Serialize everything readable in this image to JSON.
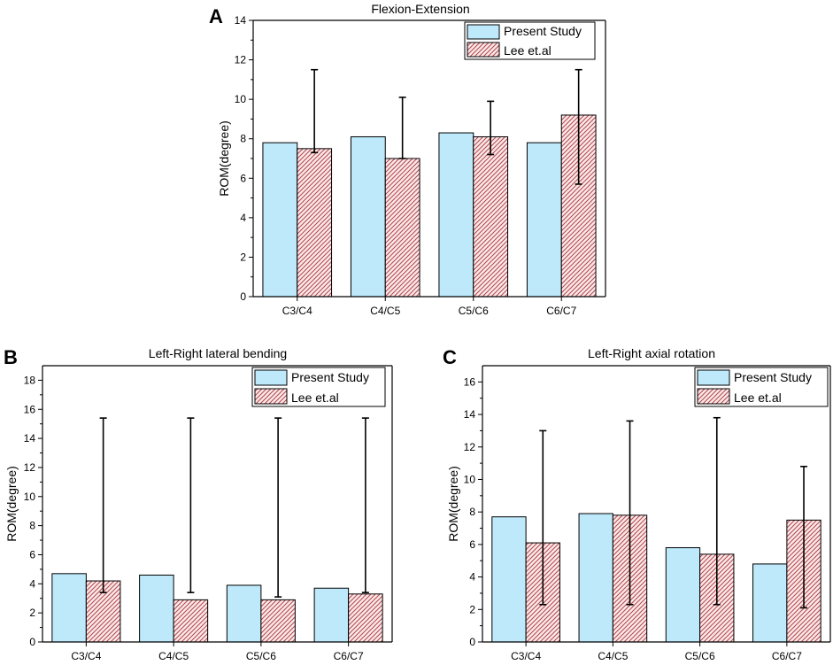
{
  "figure": {
    "colors": {
      "present": "#bde9fb",
      "lee_fill": "#fbeaea",
      "lee_hatch": "#b5494f",
      "axis": "#000000"
    },
    "icons": {
      "hatch": "diagonal-hatch-pattern"
    }
  },
  "chart_data": [
    {
      "panel": "A",
      "type": "bar",
      "title": "Flexion-Extension",
      "xlabel": "",
      "ylabel": "ROM(degree)",
      "categories": [
        "C3/C4",
        "C4/C5",
        "C5/C6",
        "C6/C7"
      ],
      "ylim": [
        0,
        14
      ],
      "yticks": [
        0,
        2,
        4,
        6,
        8,
        10,
        12,
        14
      ],
      "legend_position": "top-right",
      "series": [
        {
          "name": "Present Study",
          "values": [
            7.8,
            8.1,
            8.3,
            7.8
          ]
        },
        {
          "name": "Lee et.al",
          "values": [
            7.5,
            7.0,
            8.1,
            9.2
          ],
          "error_bars": [
            [
              7.3,
              11.5
            ],
            [
              7.0,
              10.1
            ],
            [
              7.2,
              9.9
            ],
            [
              5.7,
              11.5
            ]
          ]
        }
      ]
    },
    {
      "panel": "B",
      "type": "bar",
      "title": "Left-Right lateral bending",
      "xlabel": "",
      "ylabel": "ROM(degree)",
      "categories": [
        "C3/C4",
        "C4/C5",
        "C5/C6",
        "C6/C7"
      ],
      "ylim": [
        0,
        19
      ],
      "yticks": [
        0,
        2,
        4,
        6,
        8,
        10,
        12,
        14,
        16,
        18
      ],
      "legend_position": "top-right",
      "series": [
        {
          "name": "Present Study",
          "values": [
            4.7,
            4.6,
            3.9,
            3.7
          ]
        },
        {
          "name": "Lee et.al",
          "values": [
            4.2,
            2.9,
            2.9,
            3.3
          ],
          "error_bars": [
            [
              3.4,
              15.4
            ],
            [
              3.4,
              15.4
            ],
            [
              3.1,
              15.4
            ],
            [
              3.4,
              15.4
            ]
          ]
        }
      ]
    },
    {
      "panel": "C",
      "type": "bar",
      "title": "Left-Right axial rotation",
      "xlabel": "",
      "ylabel": "ROM(degree)",
      "categories": [
        "C3/C4",
        "C4/C5",
        "C5/C6",
        "C6/C7"
      ],
      "ylim": [
        0,
        17
      ],
      "yticks": [
        0,
        2,
        4,
        6,
        8,
        10,
        12,
        14,
        16
      ],
      "legend_position": "top-right",
      "series": [
        {
          "name": "Present Study",
          "values": [
            7.7,
            7.9,
            5.8,
            4.8
          ]
        },
        {
          "name": "Lee et.al",
          "values": [
            6.1,
            7.8,
            5.4,
            7.5
          ],
          "error_bars": [
            [
              2.3,
              13.0
            ],
            [
              2.3,
              13.6
            ],
            [
              2.3,
              13.8
            ],
            [
              2.1,
              10.8
            ]
          ]
        }
      ]
    }
  ]
}
